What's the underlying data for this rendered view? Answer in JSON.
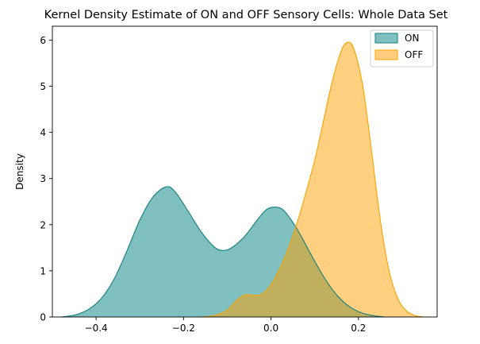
{
  "chart_data": {
    "type": "area",
    "title": "Kernel Density Estimate of ON and OFF Sensory Cells: Whole Data Set",
    "xlabel": "",
    "ylabel": "Density",
    "xlim": [
      -0.5,
      0.38
    ],
    "ylim": [
      0,
      6.3
    ],
    "xticks": [
      -0.4,
      -0.2,
      0.0,
      0.2
    ],
    "xtick_labels": [
      "−0.4",
      "−0.2",
      "0.0",
      "0.2"
    ],
    "yticks": [
      0,
      1,
      2,
      3,
      4,
      5,
      6
    ],
    "ytick_labels": [
      "0",
      "1",
      "2",
      "3",
      "4",
      "5",
      "6"
    ],
    "legend": {
      "position": "top-right",
      "entries": [
        "ON",
        "OFF"
      ]
    },
    "series": [
      {
        "name": "ON",
        "fill": "#7fbfbf",
        "edge": "#127f80",
        "points": [
          [
            -0.48,
            0.0
          ],
          [
            -0.45,
            0.04
          ],
          [
            -0.42,
            0.15
          ],
          [
            -0.39,
            0.38
          ],
          [
            -0.36,
            0.8
          ],
          [
            -0.33,
            1.42
          ],
          [
            -0.3,
            2.1
          ],
          [
            -0.27,
            2.6
          ],
          [
            -0.24,
            2.82
          ],
          [
            -0.22,
            2.72
          ],
          [
            -0.19,
            2.3
          ],
          [
            -0.16,
            1.85
          ],
          [
            -0.13,
            1.52
          ],
          [
            -0.11,
            1.44
          ],
          [
            -0.09,
            1.5
          ],
          [
            -0.06,
            1.75
          ],
          [
            -0.03,
            2.12
          ],
          [
            -0.01,
            2.33
          ],
          [
            0.01,
            2.38
          ],
          [
            0.03,
            2.3
          ],
          [
            0.06,
            1.9
          ],
          [
            0.09,
            1.38
          ],
          [
            0.12,
            0.88
          ],
          [
            0.15,
            0.48
          ],
          [
            0.18,
            0.22
          ],
          [
            0.21,
            0.08
          ],
          [
            0.24,
            0.02
          ],
          [
            0.26,
            0.0
          ]
        ]
      },
      {
        "name": "OFF",
        "fill": "#ffcd7c",
        "edge": "#f5a400",
        "points": [
          [
            -0.16,
            0.0
          ],
          [
            -0.13,
            0.03
          ],
          [
            -0.1,
            0.15
          ],
          [
            -0.08,
            0.35
          ],
          [
            -0.06,
            0.48
          ],
          [
            -0.04,
            0.47
          ],
          [
            -0.02,
            0.5
          ],
          [
            0.0,
            0.7
          ],
          [
            0.02,
            1.05
          ],
          [
            0.04,
            1.5
          ],
          [
            0.06,
            2.05
          ],
          [
            0.08,
            2.7
          ],
          [
            0.1,
            3.4
          ],
          [
            0.12,
            4.25
          ],
          [
            0.14,
            5.1
          ],
          [
            0.16,
            5.75
          ],
          [
            0.175,
            5.95
          ],
          [
            0.19,
            5.8
          ],
          [
            0.21,
            5.0
          ],
          [
            0.23,
            3.6
          ],
          [
            0.25,
            2.1
          ],
          [
            0.27,
            1.0
          ],
          [
            0.29,
            0.4
          ],
          [
            0.31,
            0.13
          ],
          [
            0.33,
            0.03
          ],
          [
            0.35,
            0.0
          ]
        ]
      }
    ]
  }
}
